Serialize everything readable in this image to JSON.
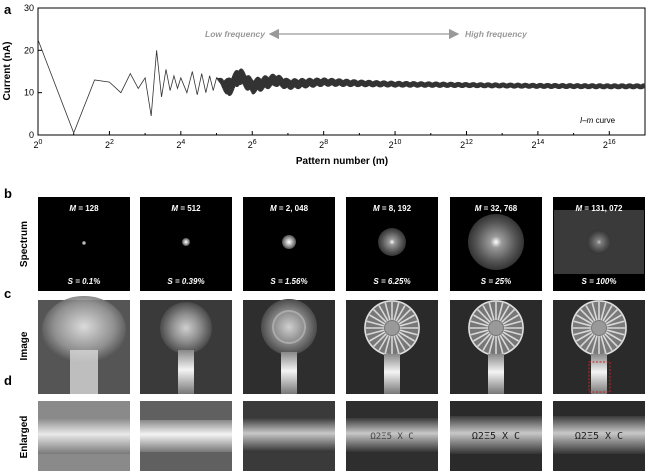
{
  "panel_letters": [
    "a",
    "b",
    "c",
    "d"
  ],
  "row_labels": {
    "spectrum": "Spectrum",
    "image": "Image",
    "enlarged": "Enlarged"
  },
  "annotations": {
    "low": "Low frequency",
    "high": "High frequency",
    "curve_legend_italic": "I–m",
    "curve_legend_rest": " curve"
  },
  "colors": {
    "line": "#333333",
    "arrow": "#999999",
    "roi": "#cc2222"
  },
  "columns": [
    {
      "m_label": "M",
      "m_value": "= 128",
      "s_label": "S",
      "s_value": "= 0.1%"
    },
    {
      "m_label": "M",
      "m_value": "= 512",
      "s_label": "S",
      "s_value": "= 0.39%"
    },
    {
      "m_label": "M",
      "m_value": "= 2, 048",
      "s_label": "S",
      "s_value": "= 1.56%"
    },
    {
      "m_label": "M",
      "m_value": "= 8, 192",
      "s_label": "S",
      "s_value": "= 6.25%"
    },
    {
      "m_label": "M",
      "m_value": "= 32, 768",
      "s_label": "S",
      "s_value": "= 25%"
    },
    {
      "m_label": "M",
      "m_value": "= 131, 072",
      "s_label": "S",
      "s_value": "= 100%"
    }
  ],
  "enlarged_text": "Ω2Ξ5 X C",
  "chart_data": {
    "type": "line",
    "title": "",
    "xlabel": "Pattern number (m)",
    "ylabel": "Current (nA)",
    "x_scale": "log2",
    "xlim": [
      1,
      131072
    ],
    "ylim": [
      0,
      30
    ],
    "x_ticks": [
      1,
      4,
      16,
      64,
      256,
      1024,
      4096,
      16384,
      65536
    ],
    "x_tick_labels": [
      {
        "base": "2",
        "exp": "0"
      },
      {
        "base": "2",
        "exp": "2"
      },
      {
        "base": "2",
        "exp": "4"
      },
      {
        "base": "2",
        "exp": "6"
      },
      {
        "base": "2",
        "exp": "8"
      },
      {
        "base": "2",
        "exp": "10"
      },
      {
        "base": "2",
        "exp": "12"
      },
      {
        "base": "2",
        "exp": "14"
      },
      {
        "base": "2",
        "exp": "16"
      }
    ],
    "y_ticks": [
      0,
      10,
      20,
      30
    ],
    "y_tick_labels": [
      "0",
      "10",
      "20",
      "30"
    ],
    "series": [
      {
        "x": [
          1,
          2,
          3,
          4,
          5,
          6,
          7,
          8,
          9,
          10,
          11,
          12,
          13,
          14,
          15,
          16,
          18,
          20,
          22,
          24,
          26,
          28,
          30,
          32,
          40,
          50,
          64,
          100,
          128,
          256,
          512,
          1024,
          4096,
          16384,
          65536,
          131072
        ],
        "y": [
          22.5,
          0.5,
          13,
          12.5,
          10,
          14.5,
          11,
          13.5,
          4.5,
          20,
          9,
          15.5,
          10.5,
          14,
          11,
          13.5,
          10,
          15,
          9.5,
          14.5,
          10,
          14,
          10.5,
          13.5,
          11,
          14,
          11.5,
          13,
          12,
          12.5,
          12.2,
          12,
          11.8,
          11.6,
          11.5,
          11.5
        ],
        "noise_amplitude": [
          0,
          0,
          0,
          0,
          0,
          0,
          0,
          0,
          0,
          0,
          0,
          0,
          0,
          0,
          0,
          0,
          0,
          0,
          0,
          0,
          0,
          0,
          0,
          0,
          2.5,
          2.2,
          2,
          1.6,
          1.4,
          1.1,
          0.9,
          0.8,
          0.7,
          0.7,
          0.7,
          0.7
        ]
      }
    ],
    "grid": false
  }
}
